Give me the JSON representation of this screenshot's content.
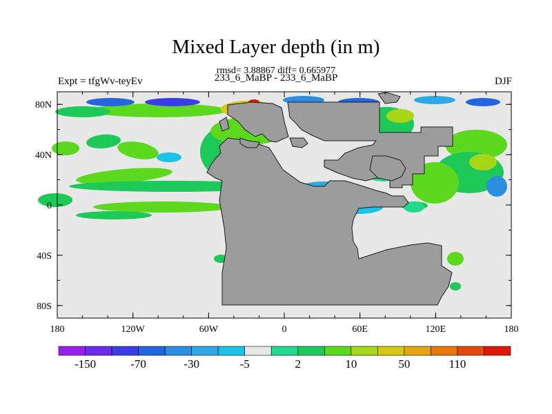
{
  "chart_data": {
    "type": "heatmap",
    "title": "Mixed Layer depth (in m)",
    "stats_text": "rmsd= 3.88867 diff= 0.665977",
    "subtitle": "233_6_MaBP - 233_6_MaBP",
    "experiment_label": "Expt = tfgWv-teyEv",
    "season": "DJF",
    "x_ticks": [
      "180",
      "120W",
      "60W",
      "0",
      "60E",
      "120E",
      "180"
    ],
    "x_tick_values": [
      -180,
      -120,
      -60,
      0,
      60,
      120,
      180
    ],
    "y_ticks": [
      "80N",
      "40N",
      "0",
      "40S",
      "80S"
    ],
    "y_tick_values": [
      80,
      40,
      0,
      -40,
      -80
    ],
    "xlim": [
      -180,
      180
    ],
    "ylim": [
      -90,
      90
    ],
    "colorbar": {
      "labels": [
        "-150",
        "-70",
        "-30",
        "-5",
        "2",
        "10",
        "50",
        "110"
      ],
      "label_after_box": [
        1,
        3,
        5,
        7,
        9,
        11,
        13,
        15
      ],
      "colors": [
        "#9a1fea",
        "#6a2ce8",
        "#3b3ee6",
        "#2466e0",
        "#2b8ee0",
        "#31a8e6",
        "#19c2e6",
        "#e8e8e8",
        "#22d98e",
        "#1ec95a",
        "#5cd81e",
        "#a6d616",
        "#d7c812",
        "#e3a80e",
        "#e6780c",
        "#e24a0c",
        "#e0180c"
      ]
    },
    "land_color": "#9c9c9c",
    "ocean_background": "#e8e8e8"
  }
}
